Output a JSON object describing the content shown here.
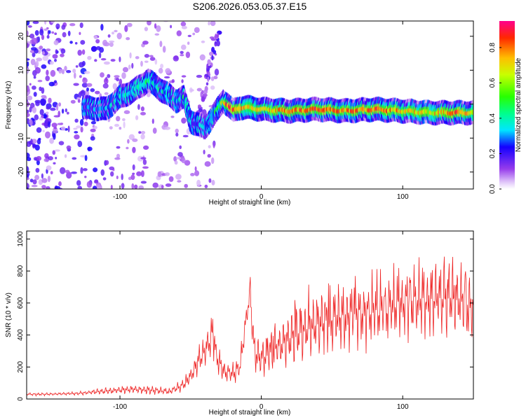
{
  "chart_data": [
    {
      "type": "heatmap",
      "title": "S206.2026.053.05.37.E15",
      "xlabel": "Height of straight line (km)",
      "ylabel": "Frequency (Hz)",
      "xlim": [
        -166,
        150
      ],
      "ylim": [
        -25,
        24.5
      ],
      "xticks": [
        -100,
        0,
        100
      ],
      "xtick_labels": [
        "-100",
        "0",
        "100"
      ],
      "yticks": [
        -20,
        -10,
        0,
        10,
        20
      ],
      "ytick_labels": [
        "-20",
        "-10",
        "0",
        "10",
        "20"
      ],
      "colorbar": {
        "label": "Normalized spectral amplitude",
        "range": [
          0.0,
          0.95
        ],
        "ticks": [
          0.0,
          0.2,
          0.4,
          0.6,
          0.8
        ],
        "tick_labels": [
          "0.0",
          "0.2",
          "0.4",
          "0.6",
          "0.8"
        ]
      },
      "ridge": {
        "x": [
          -126,
          -110,
          -100,
          -90,
          -80,
          -70,
          -60,
          -55,
          -50,
          -45,
          -40,
          -35,
          -30,
          -27,
          -24,
          -20,
          -15,
          -10,
          0,
          20,
          40,
          60,
          80,
          100,
          120,
          140,
          150
        ],
        "y": [
          -1,
          -1.5,
          2,
          4,
          7,
          4,
          1,
          2,
          -5,
          -6,
          -7,
          -4,
          -1,
          1,
          0,
          -2,
          -1,
          -1,
          -1.5,
          -2,
          -1.5,
          -2,
          -1.5,
          -2,
          -2.5,
          -2.5,
          -2.5
        ],
        "amplitude": [
          0.25,
          0.28,
          0.35,
          0.4,
          0.45,
          0.35,
          0.3,
          0.4,
          0.3,
          0.3,
          0.3,
          0.35,
          0.5,
          0.7,
          0.85,
          0.85,
          0.8,
          0.75,
          0.7,
          0.8,
          0.85,
          0.8,
          0.85,
          0.75,
          0.7,
          0.85,
          0.6
        ]
      }
    },
    {
      "type": "line",
      "xlabel": "Height of straight line (km)",
      "ylabel": "SNR (10 * v/v)",
      "xlim": [
        -166,
        150
      ],
      "ylim": [
        0,
        1050
      ],
      "xticks": [
        -100,
        0,
        100
      ],
      "xtick_labels": [
        "-100",
        "0",
        "100"
      ],
      "yticks": [
        0,
        200,
        400,
        600,
        800,
        1000
      ],
      "ytick_labels": [
        "0",
        "200",
        "400",
        "600",
        "800",
        "1000"
      ],
      "series": [
        {
          "name": "SNR",
          "color": "#ee2222",
          "x": [
            -166,
            -150,
            -130,
            -110,
            -90,
            -75,
            -65,
            -55,
            -50,
            -45,
            -40,
            -36,
            -34,
            -32,
            -28,
            -25,
            -20,
            -15,
            -10,
            -8,
            -5,
            0,
            10,
            20,
            30,
            40,
            50,
            60,
            70,
            80,
            90,
            100,
            110,
            120,
            130,
            140,
            150
          ],
          "y": [
            30,
            30,
            35,
            50,
            60,
            55,
            45,
            90,
            140,
            230,
            300,
            380,
            430,
            280,
            190,
            170,
            160,
            200,
            550,
            660,
            300,
            250,
            320,
            380,
            430,
            470,
            500,
            520,
            540,
            560,
            570,
            600,
            610,
            620,
            640,
            630,
            560
          ],
          "band": [
            8,
            8,
            10,
            20,
            25,
            25,
            20,
            40,
            60,
            80,
            100,
            120,
            130,
            100,
            80,
            70,
            60,
            70,
            100,
            120,
            120,
            120,
            140,
            160,
            180,
            190,
            200,
            200,
            210,
            210,
            210,
            220,
            230,
            230,
            240,
            240,
            230
          ]
        }
      ]
    }
  ],
  "colors": {
    "snr_line": "#ee2222",
    "axis": "#000000",
    "background": "#ffffff"
  }
}
